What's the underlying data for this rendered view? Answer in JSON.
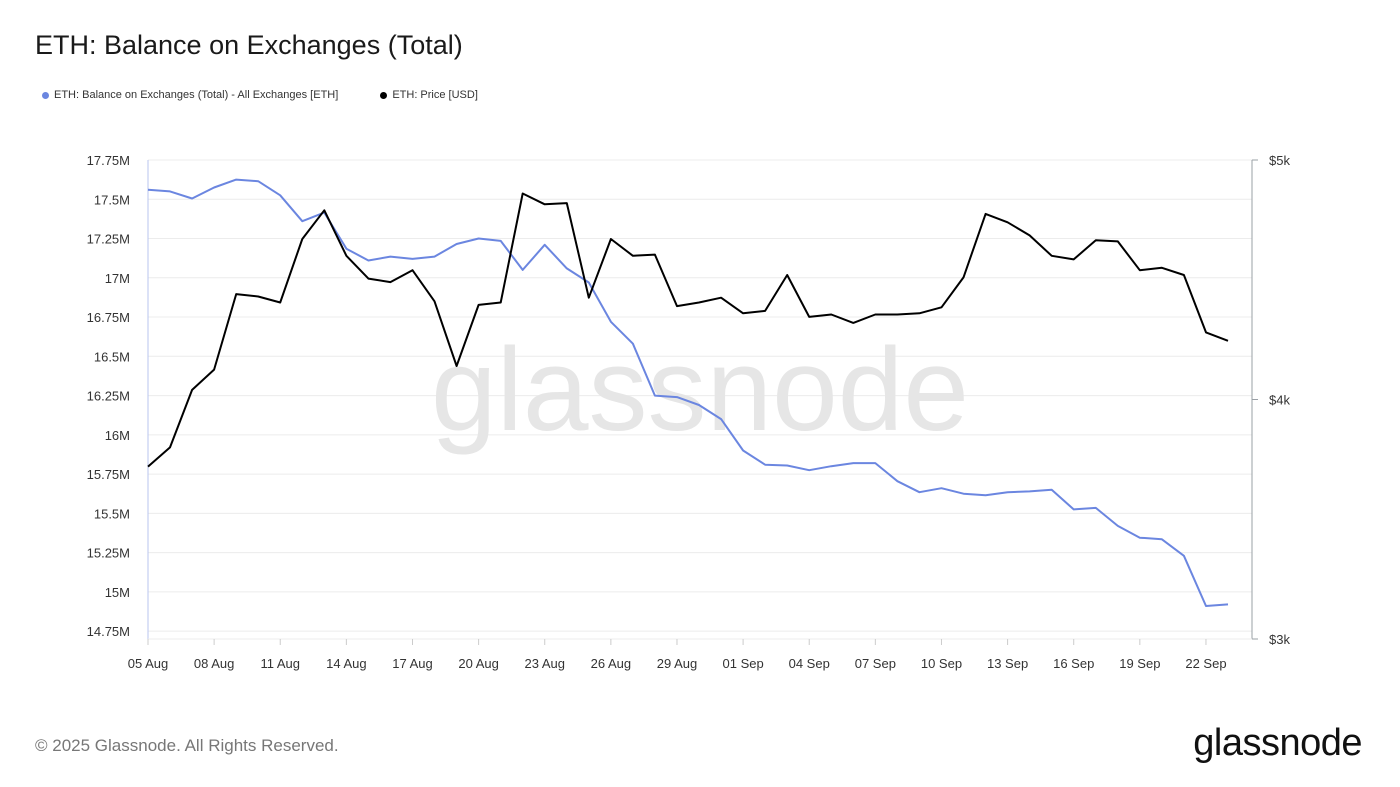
{
  "title": "ETH: Balance on Exchanges (Total)",
  "footer": {
    "copyright": "© 2025 Glassnode. All Rights Reserved.",
    "brand": "glassnode"
  },
  "watermark": "glassnode",
  "colors": {
    "balance": "#6b86e0",
    "price": "#000000",
    "grid": "#ececec",
    "axis": "#9aa0a6"
  },
  "chart_data": {
    "type": "line",
    "legend_placement": "top-left",
    "grid": true,
    "x": [
      "05 Aug",
      "06 Aug",
      "07 Aug",
      "08 Aug",
      "09 Aug",
      "10 Aug",
      "11 Aug",
      "12 Aug",
      "13 Aug",
      "14 Aug",
      "15 Aug",
      "16 Aug",
      "17 Aug",
      "18 Aug",
      "19 Aug",
      "20 Aug",
      "21 Aug",
      "22 Aug",
      "23 Aug",
      "24 Aug",
      "25 Aug",
      "26 Aug",
      "27 Aug",
      "28 Aug",
      "29 Aug",
      "30 Aug",
      "31 Aug",
      "01 Sep",
      "02 Sep",
      "03 Sep",
      "04 Sep",
      "05 Sep",
      "06 Sep",
      "07 Sep",
      "08 Sep",
      "09 Sep",
      "10 Sep",
      "11 Sep",
      "12 Sep",
      "13 Sep",
      "14 Sep",
      "15 Sep",
      "16 Sep",
      "17 Sep",
      "18 Sep",
      "19 Sep",
      "20 Sep",
      "21 Sep",
      "22 Sep",
      "23 Sep"
    ],
    "x_tick_labels": [
      "05 Aug",
      "08 Aug",
      "11 Aug",
      "14 Aug",
      "17 Aug",
      "20 Aug",
      "23 Aug",
      "26 Aug",
      "29 Aug",
      "01 Sep",
      "04 Sep",
      "07 Sep",
      "10 Sep",
      "13 Sep",
      "16 Sep",
      "19 Sep",
      "22 Sep"
    ],
    "y_left": {
      "ticks": [
        14750000,
        15000000,
        15250000,
        15500000,
        15750000,
        16000000,
        16250000,
        16500000,
        16750000,
        17000000,
        17250000,
        17500000,
        17750000
      ],
      "tick_labels": [
        "14.75M",
        "15M",
        "15.25M",
        "15.5M",
        "15.75M",
        "16M",
        "16.25M",
        "16.5M",
        "16.75M",
        "17M",
        "17.25M",
        "17.5M",
        "17.75M"
      ],
      "range": [
        14700000,
        17750000
      ]
    },
    "y_right": {
      "ticks": [
        3000,
        4000,
        5000
      ],
      "tick_labels": [
        "$3k",
        "$4k",
        "$5k"
      ],
      "range": [
        3000,
        5000
      ]
    },
    "series": [
      {
        "name": "ETH: Balance on Exchanges (Total) - All Exchanges [ETH]",
        "axis": "left",
        "values": [
          17560000,
          17550000,
          17505000,
          17575000,
          17625000,
          17615000,
          17525000,
          17360000,
          17415000,
          17185000,
          17110000,
          17135000,
          17120000,
          17135000,
          17215000,
          17250000,
          17235000,
          17050000,
          17210000,
          17060000,
          16970000,
          16720000,
          16580000,
          16250000,
          16240000,
          16190000,
          16100000,
          15900000,
          15810000,
          15805000,
          15775000,
          15800000,
          15820000,
          15820000,
          15705000,
          15635000,
          15660000,
          15625000,
          15615000,
          15635000,
          15640000,
          15650000,
          15525000,
          15535000,
          15420000,
          15345000,
          15335000,
          15230000,
          14910000,
          14920000
        ]
      },
      {
        "name": "ETH: Price [USD]",
        "axis": "right",
        "values": [
          3720,
          3800,
          4040,
          4125,
          4440,
          4430,
          4405,
          4670,
          4790,
          4600,
          4505,
          4490,
          4540,
          4410,
          4140,
          4395,
          4405,
          4860,
          4815,
          4820,
          4425,
          4670,
          4600,
          4605,
          4390,
          4405,
          4425,
          4360,
          4370,
          4520,
          4345,
          4355,
          4320,
          4355,
          4355,
          4360,
          4385,
          4510,
          4775,
          4740,
          4685,
          4600,
          4585,
          4665,
          4660,
          4540,
          4550,
          4520,
          4280,
          4245
        ]
      }
    ]
  }
}
